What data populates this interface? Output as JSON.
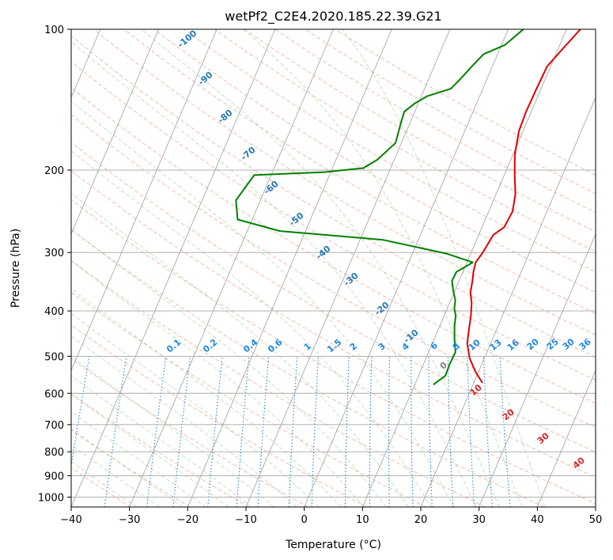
{
  "chart_data": {
    "type": "line",
    "subtype": "skew-t log-p diagram",
    "title": "wetPf2_C2E4.2020.185.22.39.G21",
    "xlabel": "Temperature (°C)",
    "ylabel": "Pressure (hPa)",
    "xlim": [
      -40,
      50
    ],
    "ylim": [
      1050,
      100
    ],
    "y_scale": "log",
    "grid": true,
    "x_ticks": [
      -40,
      -30,
      -20,
      -10,
      0,
      10,
      20,
      30,
      40,
      50
    ],
    "y_ticks": [
      100,
      200,
      300,
      400,
      500,
      600,
      700,
      800,
      900,
      1000
    ],
    "series": [
      {
        "color": "#e00000",
        "points": [
          [
            21.5,
            570
          ],
          [
            19.5,
            540
          ],
          [
            17.5,
            505
          ],
          [
            16,
            470
          ],
          [
            15.3,
            440
          ],
          [
            14.6,
            410
          ],
          [
            13.8,
            385
          ],
          [
            12.8,
            365
          ],
          [
            12.3,
            345
          ],
          [
            11.8,
            330
          ],
          [
            11.5,
            315
          ],
          [
            12,
            300
          ],
          [
            12.3,
            285
          ],
          [
            12.5,
            275
          ],
          [
            13.8,
            265
          ],
          [
            14.1,
            245
          ],
          [
            13.3,
            225
          ],
          [
            11.8,
            205
          ],
          [
            10.3,
            185
          ],
          [
            9.3,
            165
          ],
          [
            9.1,
            150
          ],
          [
            9.2,
            135
          ],
          [
            9.4,
            120
          ],
          [
            10.8,
            110
          ],
          [
            12.4,
            100
          ]
        ]
      },
      {
        "color": "#008000",
        "points": [
          [
            13.2,
            575
          ],
          [
            14.6,
            550
          ],
          [
            14.5,
            520
          ],
          [
            14.6,
            490
          ],
          [
            13.5,
            460
          ],
          [
            13,
            445
          ],
          [
            12.5,
            430
          ],
          [
            12,
            410
          ],
          [
            11.2,
            395
          ],
          [
            10.8,
            380
          ],
          [
            9.6,
            360
          ],
          [
            8.8,
            345
          ],
          [
            8.9,
            330
          ],
          [
            11,
            315
          ],
          [
            6,
            302
          ],
          [
            -6,
            282
          ],
          [
            -24.4,
            270
          ],
          [
            -32.5,
            255
          ],
          [
            -34.2,
            232
          ],
          [
            -32.9,
            205
          ],
          [
            -21.1,
            202
          ],
          [
            -14.7,
            198
          ],
          [
            -12.9,
            190
          ],
          [
            -11,
            175
          ],
          [
            -11.5,
            160
          ],
          [
            -11.8,
            150
          ],
          [
            -10.6,
            144
          ],
          [
            -9,
            139
          ],
          [
            -5.5,
            134
          ],
          [
            -4.6,
            128
          ],
          [
            -3.5,
            120
          ],
          [
            -2.4,
            113
          ],
          [
            0.6,
            108
          ],
          [
            2.6,
            100
          ]
        ]
      }
    ],
    "guide_lines": {
      "dry_adiabat_labels": [
        "0",
        "10",
        "20",
        "30",
        "40"
      ],
      "moist_adiabat_labels": [
        "-100",
        "-90",
        "-80",
        "-70",
        "-60",
        "-50",
        "-40",
        "-30",
        "-20",
        "-10"
      ],
      "mixing_ratio_labels": [
        "0.1",
        "0.2",
        "0.4",
        "0.6",
        "1",
        "1.5",
        "2",
        "3",
        "4",
        "6",
        "8",
        "10",
        "13",
        "16",
        "20",
        "25",
        "30",
        "36"
      ]
    }
  }
}
